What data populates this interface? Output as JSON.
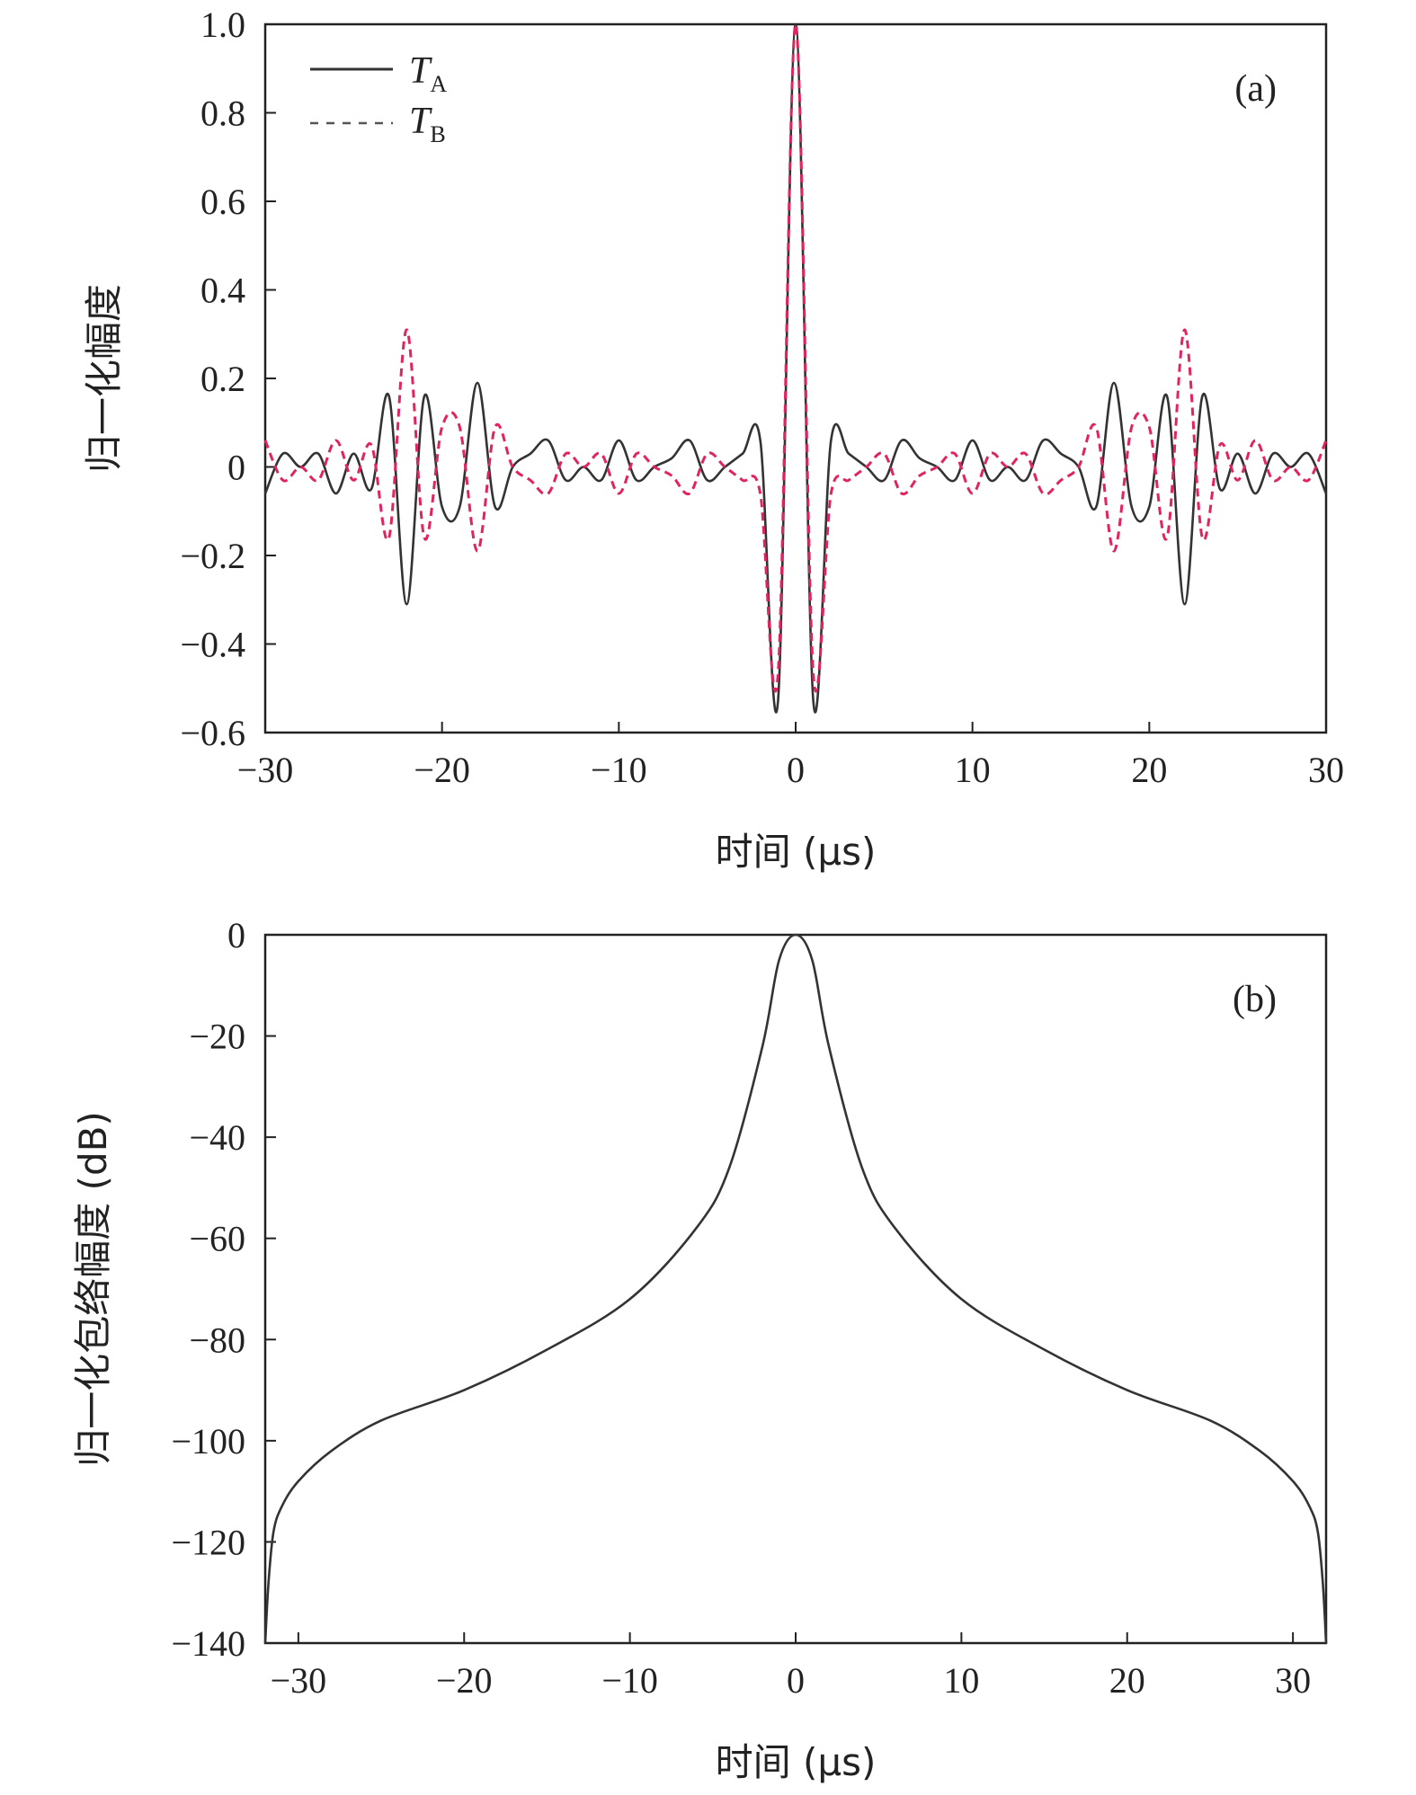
{
  "chart_data": [
    {
      "type": "line",
      "panel": "(a)",
      "xlabel": "时间 (μs)",
      "ylabel": "归一化幅度",
      "xlim": [
        -30,
        30
      ],
      "ylim": [
        -0.6,
        1.0
      ],
      "xticks": [
        -30,
        -20,
        -10,
        0,
        10,
        20,
        30
      ],
      "xtick_labels": [
        "−30",
        "−20",
        "−10",
        "0",
        "10",
        "20",
        "30"
      ],
      "yticks": [
        1.0,
        0.8,
        0.6,
        0.4,
        0.2,
        0,
        -0.2,
        -0.4,
        -0.6
      ],
      "ytick_labels": [
        "1.0",
        "0.8",
        "0.6",
        "0.4",
        "0.2",
        "0",
        "−0.2",
        "−0.4",
        "−0.6"
      ],
      "grid": false,
      "legend_position": "top-left",
      "series": [
        {
          "name": "T",
          "subscript": "A",
          "style": "solid",
          "color": "#333333",
          "x": [
            -30,
            -29,
            -28,
            -27,
            -26,
            -25,
            -24,
            -23,
            -22,
            -21,
            -20,
            -19,
            -18,
            -17,
            -16,
            -15,
            -14,
            -13,
            -12,
            -11,
            -10,
            -9,
            -8,
            -7,
            -6,
            -5,
            -4,
            -3,
            -2,
            -1,
            0,
            1,
            2,
            3,
            4,
            5,
            6,
            7,
            8,
            9,
            10,
            11,
            12,
            13,
            14,
            15,
            16,
            17,
            18,
            19,
            20,
            21,
            22,
            23,
            24,
            25,
            26,
            27,
            28,
            29,
            30
          ],
          "y": [
            -0.06,
            0.03,
            0.0,
            0.03,
            -0.06,
            0.03,
            -0.05,
            0.16,
            -0.31,
            0.16,
            -0.09,
            -0.09,
            0.19,
            -0.09,
            0.0,
            0.03,
            0.06,
            -0.03,
            0.0,
            -0.03,
            0.06,
            -0.03,
            0.0,
            0.02,
            0.06,
            -0.03,
            0.0,
            0.03,
            0.06,
            -0.53,
            1.0,
            -0.53,
            0.06,
            0.03,
            0.0,
            -0.03,
            0.06,
            0.02,
            0.0,
            -0.03,
            0.06,
            -0.03,
            0.0,
            -0.03,
            0.06,
            0.03,
            0.0,
            -0.09,
            0.19,
            -0.09,
            -0.09,
            0.16,
            -0.31,
            0.16,
            -0.05,
            0.03,
            -0.06,
            0.03,
            0.0,
            0.03,
            -0.06
          ]
        },
        {
          "name": "T",
          "subscript": "B",
          "style": "dashed",
          "color": "#e0245e",
          "x": [
            -30,
            -29,
            -28,
            -27,
            -26,
            -25,
            -24,
            -23,
            -22,
            -21,
            -20,
            -19,
            -18,
            -17,
            -16,
            -15,
            -14,
            -13,
            -12,
            -11,
            -10,
            -9,
            -8,
            -7,
            -6,
            -5,
            -4,
            -3,
            -2,
            -1,
            0,
            1,
            2,
            3,
            4,
            5,
            6,
            7,
            8,
            9,
            10,
            11,
            12,
            13,
            14,
            15,
            16,
            17,
            18,
            19,
            20,
            21,
            22,
            23,
            24,
            25,
            26,
            27,
            28,
            29,
            30
          ],
          "y": [
            0.06,
            -0.03,
            0.0,
            -0.03,
            0.06,
            -0.03,
            0.05,
            -0.16,
            0.31,
            -0.16,
            0.09,
            0.09,
            -0.19,
            0.09,
            0.0,
            -0.03,
            -0.06,
            0.03,
            0.0,
            0.03,
            -0.06,
            0.03,
            0.0,
            -0.02,
            -0.06,
            0.03,
            0.0,
            -0.03,
            -0.06,
            -0.47,
            1.0,
            -0.47,
            -0.06,
            -0.03,
            0.0,
            0.03,
            -0.06,
            -0.02,
            0.0,
            0.03,
            -0.06,
            0.03,
            0.0,
            0.03,
            -0.06,
            -0.03,
            0.0,
            0.09,
            -0.19,
            0.09,
            0.09,
            -0.16,
            0.31,
            -0.16,
            0.05,
            -0.03,
            0.06,
            -0.03,
            0.0,
            -0.03,
            0.06
          ]
        }
      ]
    },
    {
      "type": "line",
      "panel": "(b)",
      "xlabel": "时间 (μs)",
      "ylabel": "归一化包络幅度 (dB)",
      "xlim": [
        -32,
        32
      ],
      "ylim": [
        -140,
        0
      ],
      "xticks": [
        -30,
        -20,
        -10,
        0,
        10,
        20,
        30
      ],
      "xtick_labels": [
        "−30",
        "−20",
        "−10",
        "0",
        "10",
        "20",
        "30"
      ],
      "yticks": [
        0,
        -20,
        -40,
        -60,
        -80,
        -100,
        -120,
        -140
      ],
      "ytick_labels": [
        "0",
        "−20",
        "−40",
        "−60",
        "−80",
        "−100",
        "−120",
        "−140"
      ],
      "grid": false,
      "series": [
        {
          "style": "solid",
          "color": "#333333",
          "x": [
            -32,
            -31.8,
            -31.5,
            -31,
            -30,
            -28,
            -25,
            -20,
            -15,
            -10,
            -6,
            -4,
            -2,
            -1,
            0,
            1,
            2,
            4,
            6,
            10,
            15,
            20,
            25,
            28,
            30,
            31,
            31.5,
            31.8,
            32
          ],
          "y": [
            -140,
            -128,
            -118,
            -113,
            -108,
            -102,
            -96,
            -90,
            -82,
            -72,
            -58,
            -46,
            -22,
            -5,
            0,
            -5,
            -22,
            -46,
            -58,
            -72,
            -82,
            -90,
            -96,
            -102,
            -108,
            -113,
            -118,
            -128,
            -140
          ]
        }
      ]
    }
  ]
}
